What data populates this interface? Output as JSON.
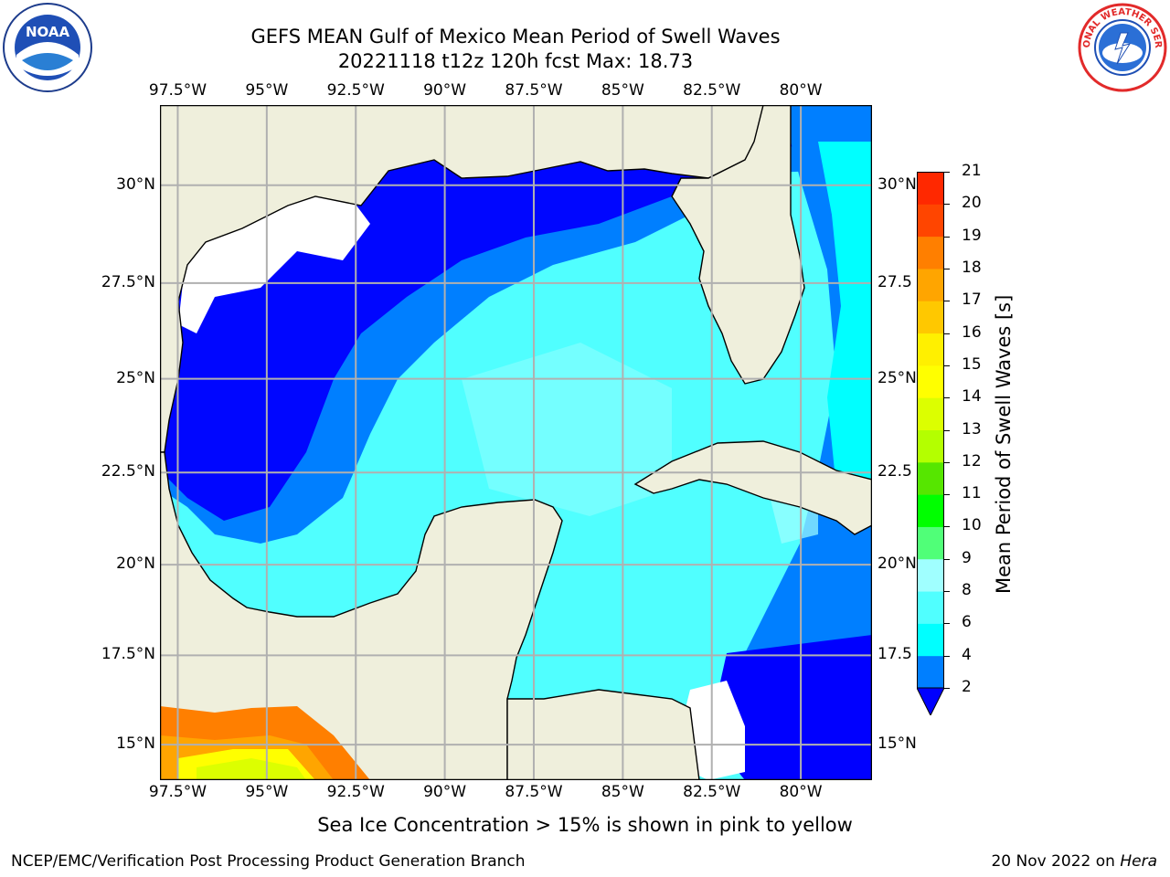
{
  "header": {
    "title": "GEFS MEAN Gulf of Mexico Mean Period of Swell Waves",
    "subtitle": "20221118 t12z 120h fcst   Max: 18.73"
  },
  "map": {
    "longitude_labels": [
      "97.5°W",
      "95°W",
      "92.5°W",
      "90°W",
      "87.5°W",
      "85°W",
      "82.5°W",
      "80°W"
    ],
    "latitude_labels": [
      "30°N",
      "27.5°N",
      "25°N",
      "22.5°N",
      "20°N",
      "17.5°N",
      "15°N"
    ],
    "right_latitude_labels": [
      "30°N",
      "27.5",
      "25°N",
      "22.5",
      "20°N",
      "17.5",
      "15°N"
    ],
    "lon_range_deg_w": [
      98,
      78
    ],
    "lat_range_deg_n": [
      14,
      32
    ],
    "land_color": "#efefdc",
    "grid": true
  },
  "colorbar": {
    "title": "Mean Period of Swell Waves [s]",
    "tick_labels": [
      "2",
      "4",
      "6",
      "8",
      "9",
      "10",
      "11",
      "12",
      "13",
      "14",
      "15",
      "16",
      "17",
      "18",
      "19",
      "20",
      "21"
    ],
    "colors": [
      "#0000ff",
      "#007fff",
      "#00ffff",
      "#50ffff",
      "#a0ffff",
      "#50ff78",
      "#00ff00",
      "#56e600",
      "#b4ff00",
      "#dcff00",
      "#ffff00",
      "#fff000",
      "#ffc800",
      "#ffa500",
      "#ff7f00",
      "#ff4500",
      "#ff2800",
      "#ff0000"
    ],
    "extend": "min"
  },
  "caption": "Sea Ice Concentration > 15% is shown in pink to yellow",
  "footer": {
    "left": "NCEP/EMC/Verification Post Processing Product Generation Branch",
    "right_date": "20 Nov 2022 on ",
    "right_host": "Hera"
  },
  "logos": {
    "left": "noaa-logo",
    "left_text": "NOAA",
    "right": "nws-logo",
    "right_text": "NATIONAL WEATHER SERVICE"
  }
}
